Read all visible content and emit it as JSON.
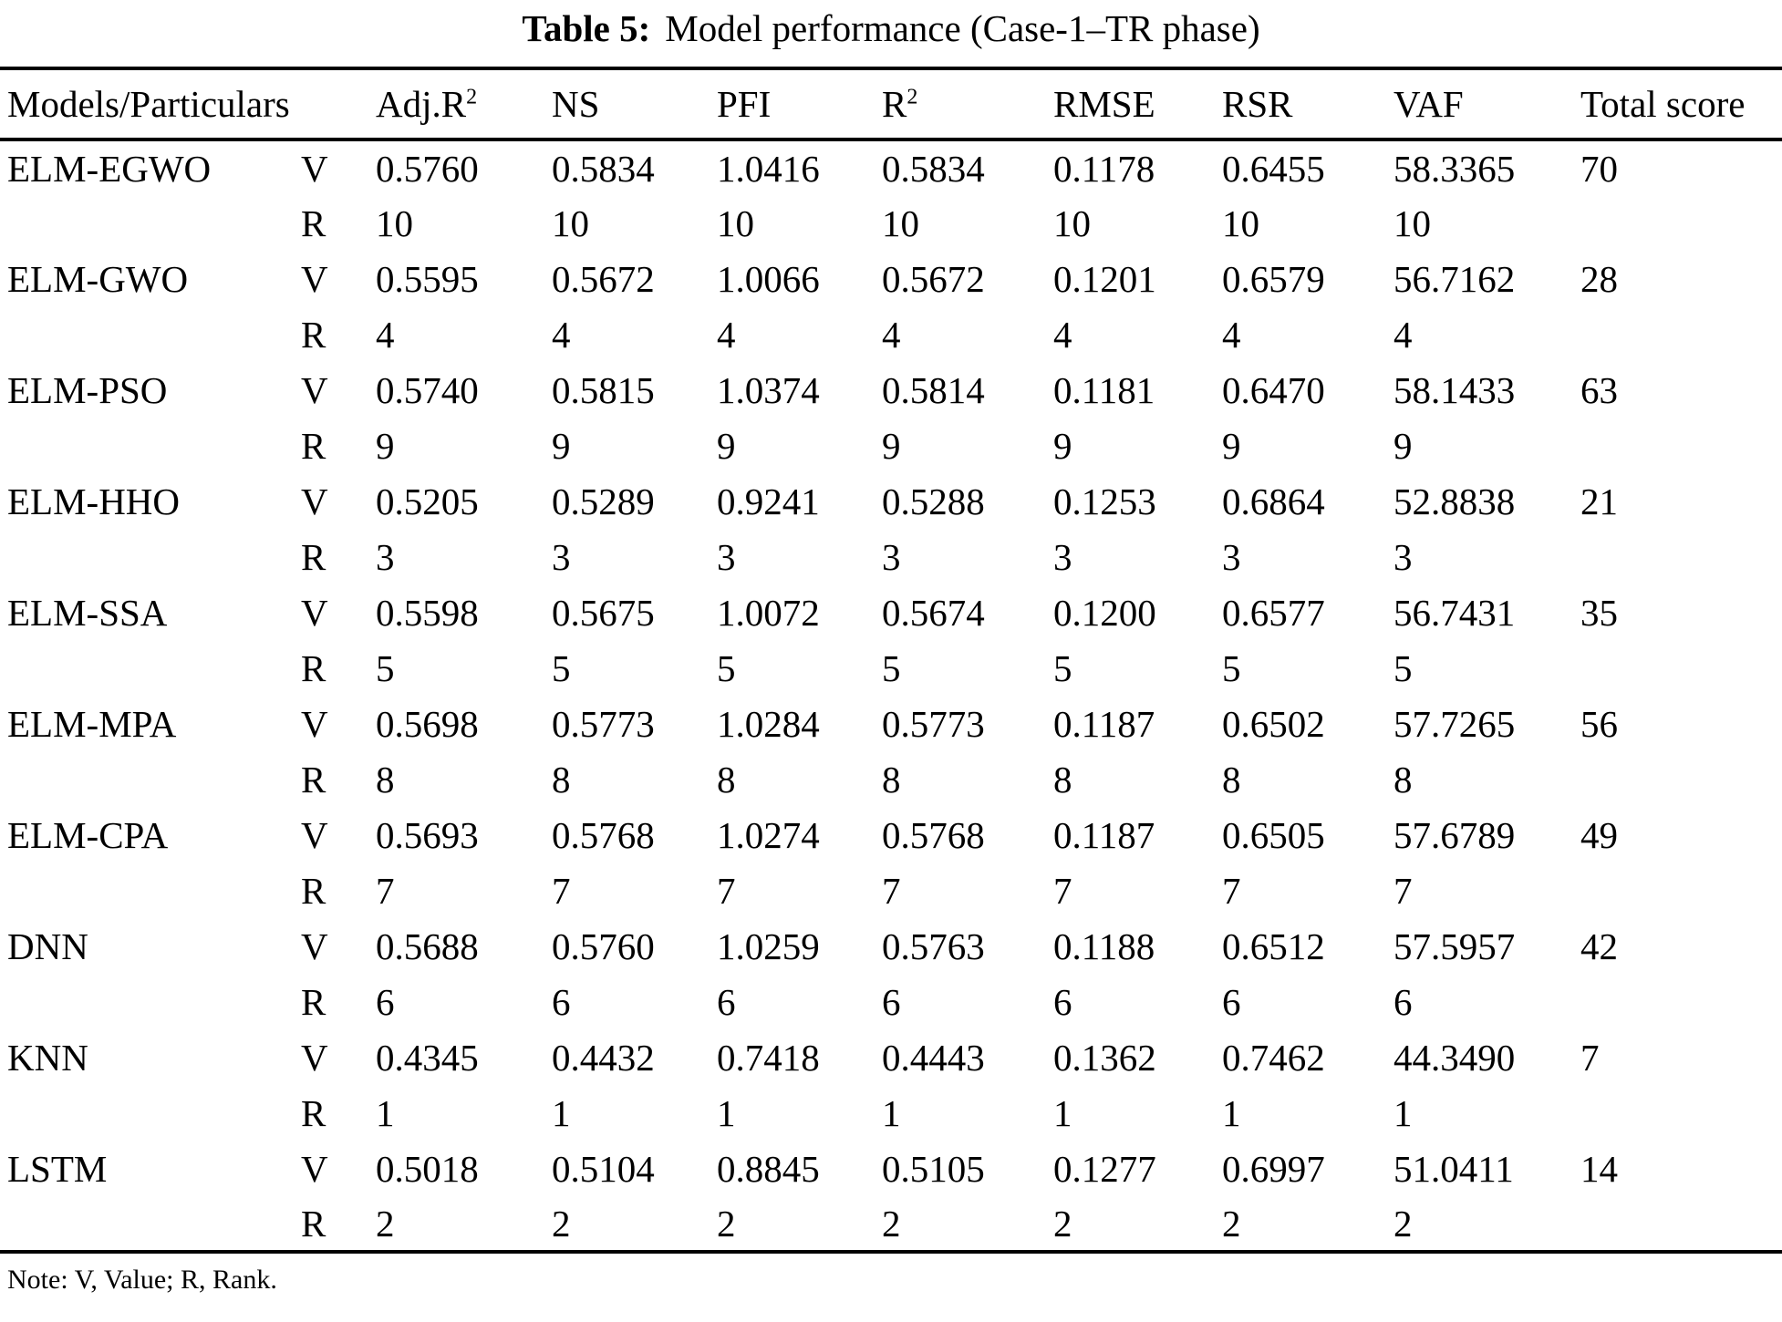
{
  "caption": {
    "label": "Table 5:",
    "text": "Model performance (Case-1–TR phase)"
  },
  "table": {
    "headers": [
      {
        "text": "Models/Particulars"
      },
      {
        "text": ""
      },
      {
        "text": "Adj.R",
        "sup": "2"
      },
      {
        "text": "NS"
      },
      {
        "text": "PFI"
      },
      {
        "text": "R",
        "sup": "2"
      },
      {
        "text": "RMSE"
      },
      {
        "text": "RSR"
      },
      {
        "text": "VAF"
      },
      {
        "text": "Total score"
      }
    ],
    "row_labels": {
      "value": "V",
      "rank": "R"
    },
    "models": [
      {
        "name": "ELM-EGWO",
        "values": [
          "0.5760",
          "0.5834",
          "1.0416",
          "0.5834",
          "0.1178",
          "0.6455",
          "58.3365"
        ],
        "ranks": [
          "10",
          "10",
          "10",
          "10",
          "10",
          "10",
          "10"
        ],
        "total": "70"
      },
      {
        "name": "ELM-GWO",
        "values": [
          "0.5595",
          "0.5672",
          "1.0066",
          "0.5672",
          "0.1201",
          "0.6579",
          "56.7162"
        ],
        "ranks": [
          "4",
          "4",
          "4",
          "4",
          "4",
          "4",
          "4"
        ],
        "total": "28"
      },
      {
        "name": "ELM-PSO",
        "values": [
          "0.5740",
          "0.5815",
          "1.0374",
          "0.5814",
          "0.1181",
          "0.6470",
          "58.1433"
        ],
        "ranks": [
          "9",
          "9",
          "9",
          "9",
          "9",
          "9",
          "9"
        ],
        "total": "63"
      },
      {
        "name": "ELM-HHO",
        "values": [
          "0.5205",
          "0.5289",
          "0.9241",
          "0.5288",
          "0.1253",
          "0.6864",
          "52.8838"
        ],
        "ranks": [
          "3",
          "3",
          "3",
          "3",
          "3",
          "3",
          "3"
        ],
        "total": "21"
      },
      {
        "name": "ELM-SSA",
        "values": [
          "0.5598",
          "0.5675",
          "1.0072",
          "0.5674",
          "0.1200",
          "0.6577",
          "56.7431"
        ],
        "ranks": [
          "5",
          "5",
          "5",
          "5",
          "5",
          "5",
          "5"
        ],
        "total": "35"
      },
      {
        "name": "ELM-MPA",
        "values": [
          "0.5698",
          "0.5773",
          "1.0284",
          "0.5773",
          "0.1187",
          "0.6502",
          "57.7265"
        ],
        "ranks": [
          "8",
          "8",
          "8",
          "8",
          "8",
          "8",
          "8"
        ],
        "total": "56"
      },
      {
        "name": "ELM-CPA",
        "values": [
          "0.5693",
          "0.5768",
          "1.0274",
          "0.5768",
          "0.1187",
          "0.6505",
          "57.6789"
        ],
        "ranks": [
          "7",
          "7",
          "7",
          "7",
          "7",
          "7",
          "7"
        ],
        "total": "49"
      },
      {
        "name": "DNN",
        "values": [
          "0.5688",
          "0.5760",
          "1.0259",
          "0.5763",
          "0.1188",
          "0.6512",
          "57.5957"
        ],
        "ranks": [
          "6",
          "6",
          "6",
          "6",
          "6",
          "6",
          "6"
        ],
        "total": "42"
      },
      {
        "name": "KNN",
        "values": [
          "0.4345",
          "0.4432",
          "0.7418",
          "0.4443",
          "0.1362",
          "0.7462",
          "44.3490"
        ],
        "ranks": [
          "1",
          "1",
          "1",
          "1",
          "1",
          "1",
          "1"
        ],
        "total": "7"
      },
      {
        "name": "LSTM",
        "values": [
          "0.5018",
          "0.5104",
          "0.8845",
          "0.5105",
          "0.1277",
          "0.6997",
          "51.0411"
        ],
        "ranks": [
          "2",
          "2",
          "2",
          "2",
          "2",
          "2",
          "2"
        ],
        "total": "14"
      }
    ]
  },
  "note": "Note: V, Value; R, Rank."
}
